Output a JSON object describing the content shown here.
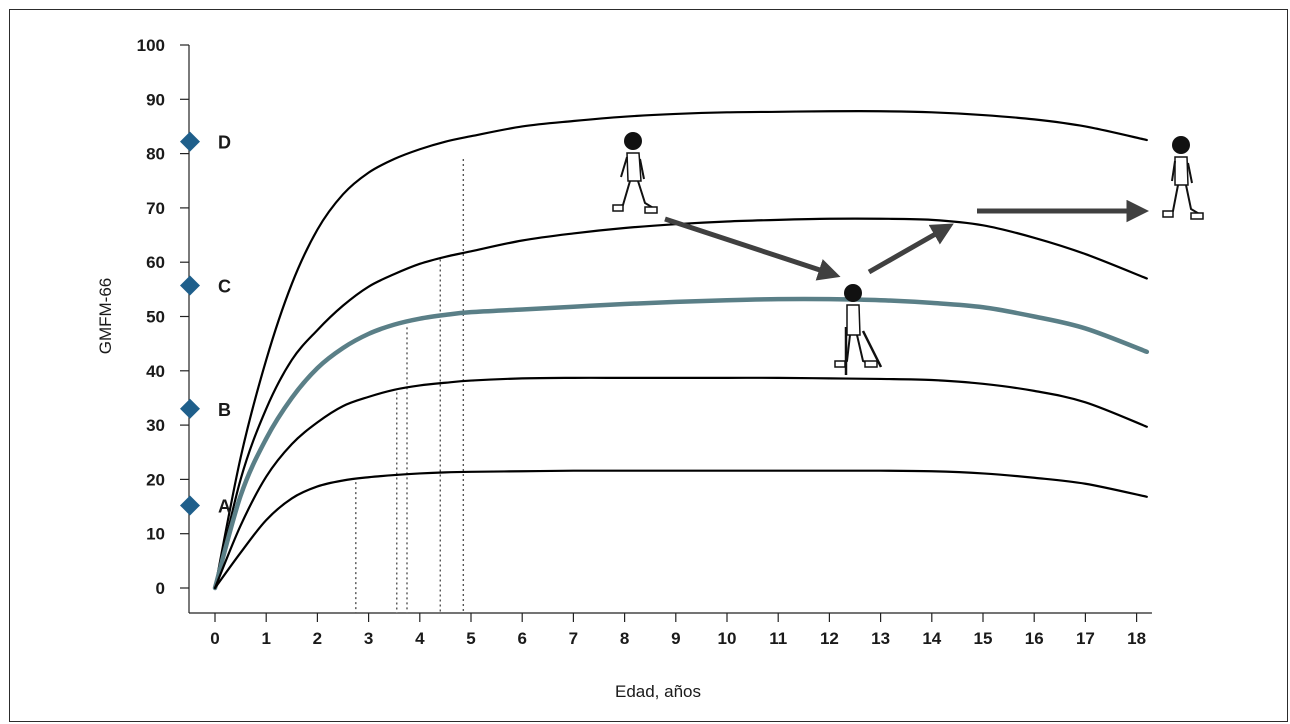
{
  "chart_data": {
    "type": "line",
    "title": "",
    "xlabel": "Edad, años",
    "ylabel": "GMFM-66",
    "xlim": [
      -0.5,
      18.3
    ],
    "ylim": [
      -4,
      100
    ],
    "x_ticks": [
      0,
      1,
      2,
      3,
      4,
      5,
      6,
      7,
      8,
      9,
      10,
      11,
      12,
      13,
      14,
      15,
      16,
      17,
      18
    ],
    "y_ticks": [
      0,
      10,
      20,
      30,
      40,
      50,
      60,
      70,
      80,
      90,
      100
    ],
    "grid": false,
    "series": [
      {
        "color": "#000000",
        "highlight": false,
        "x": [
          0,
          0.5,
          1,
          1.5,
          2,
          2.5,
          3,
          3.5,
          4,
          4.5,
          5,
          6,
          7,
          8,
          9,
          10,
          11,
          12,
          13,
          14,
          15,
          16,
          17,
          18.2
        ],
        "y": [
          0,
          24,
          42,
          56,
          66,
          72.5,
          76.5,
          79,
          80.8,
          82.2,
          83.2,
          85,
          86,
          86.8,
          87.3,
          87.6,
          87.7,
          87.8,
          87.8,
          87.6,
          87.1,
          86.3,
          85,
          82.5
        ]
      },
      {
        "color": "#000000",
        "highlight": false,
        "x": [
          0,
          0.5,
          1,
          1.5,
          2,
          2.5,
          3,
          3.5,
          4,
          4.5,
          5,
          6,
          7,
          8,
          9,
          10,
          11,
          12,
          13,
          14,
          15,
          16,
          17,
          18.2
        ],
        "y": [
          0,
          20,
          33,
          42,
          47.5,
          52,
          55.5,
          57.8,
          59.7,
          61,
          62,
          64,
          65.3,
          66.3,
          67,
          67.5,
          67.8,
          68,
          68,
          67.8,
          66.8,
          64.5,
          61.5,
          57
        ]
      },
      {
        "color": "#5a7f87",
        "highlight": true,
        "x": [
          0,
          0.5,
          1,
          1.5,
          2,
          2.5,
          3,
          3.5,
          4,
          4.5,
          5,
          6,
          7,
          8,
          9,
          10,
          11,
          12,
          13,
          14,
          15,
          16,
          17,
          18.2
        ],
        "y": [
          0,
          17,
          27.5,
          35,
          40.5,
          44.2,
          46.8,
          48.5,
          49.6,
          50.3,
          50.8,
          51.3,
          51.8,
          52.3,
          52.7,
          53,
          53.2,
          53.2,
          53,
          52.5,
          51.7,
          50,
          47.8,
          43.5
        ]
      },
      {
        "color": "#000000",
        "highlight": false,
        "x": [
          0,
          0.5,
          1,
          1.5,
          2,
          2.5,
          3,
          3.5,
          4,
          4.5,
          5,
          6,
          7,
          8,
          9,
          10,
          11,
          12,
          13,
          14,
          15,
          16,
          17,
          18.2
        ],
        "y": [
          0,
          11.5,
          20.5,
          26.5,
          30.5,
          33.5,
          35.2,
          36.5,
          37.3,
          37.8,
          38.2,
          38.6,
          38.7,
          38.7,
          38.7,
          38.7,
          38.7,
          38.6,
          38.5,
          38.3,
          37.6,
          36.3,
          34.2,
          29.7
        ]
      },
      {
        "color": "#000000",
        "highlight": false,
        "x": [
          0,
          0.5,
          1,
          1.5,
          2,
          2.5,
          3,
          3.5,
          4,
          4.5,
          5,
          6,
          7,
          8,
          9,
          10,
          11,
          12,
          13,
          14,
          15,
          16,
          17,
          18.2
        ],
        "y": [
          0,
          6.5,
          12.5,
          16.5,
          18.7,
          19.8,
          20.4,
          20.8,
          21.1,
          21.3,
          21.4,
          21.5,
          21.6,
          21.6,
          21.6,
          21.6,
          21.6,
          21.6,
          21.6,
          21.5,
          21.1,
          20.3,
          19.2,
          16.8
        ]
      }
    ],
    "levels": [
      {
        "label": "A",
        "value": 15.2,
        "color": "#1f5f8b"
      },
      {
        "label": "B",
        "value": 33,
        "color": "#1f5f8b"
      },
      {
        "label": "C",
        "value": 55.7,
        "color": "#1f5f8b"
      },
      {
        "label": "D",
        "value": 82.2,
        "color": "#1f5f8b"
      }
    ],
    "dotted_markers": [
      {
        "x": 2.75,
        "y": 19.5
      },
      {
        "x": 3.55,
        "y": 36
      },
      {
        "x": 3.75,
        "y": 48
      },
      {
        "x": 4.4,
        "y": 60.5
      },
      {
        "x": 4.85,
        "y": 79
      }
    ]
  },
  "figure_icons": [
    "walking-child-icon",
    "child-with-crutches-icon",
    "walking-child-icon"
  ]
}
